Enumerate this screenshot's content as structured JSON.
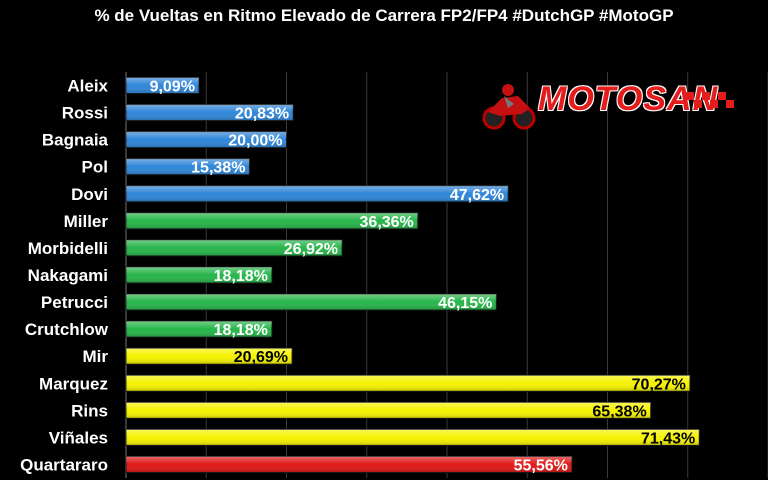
{
  "chart_data": {
    "type": "bar",
    "orientation": "horizontal",
    "title": "% de Vueltas en Ritmo Elevado de Carrera FP2/FP4 #DutchGP #MotoGP",
    "categories": [
      "Aleix",
      "Rossi",
      "Bagnaia",
      "Pol",
      "Dovi",
      "Miller",
      "Morbidelli",
      "Nakagami",
      "Petrucci",
      "Crutchlow",
      "Mir",
      "Marquez",
      "Rins",
      "Viñales",
      "Quartararo"
    ],
    "values": [
      9.09,
      20.83,
      20.0,
      15.38,
      47.62,
      36.36,
      26.92,
      18.18,
      46.15,
      18.18,
      20.69,
      70.27,
      65.38,
      71.43,
      55.56
    ],
    "data_labels": [
      "9,09%",
      "20,83%",
      "20,00%",
      "15,38%",
      "47,62%",
      "36,36%",
      "26,92%",
      "18,18%",
      "46,15%",
      "18,18%",
      "20,69%",
      "70,27%",
      "65,38%",
      "71,43%",
      "55,56%"
    ],
    "bar_colors": [
      "#2f86d8",
      "#2f86d8",
      "#2f86d8",
      "#2f86d8",
      "#2f86d8",
      "#27b54a",
      "#27b54a",
      "#27b54a",
      "#27b54a",
      "#27b54a",
      "#f5f200",
      "#f5f200",
      "#f5f200",
      "#f5f200",
      "#e01818"
    ],
    "label_colors": [
      "#ffffff",
      "#ffffff",
      "#ffffff",
      "#ffffff",
      "#ffffff",
      "#ffffff",
      "#ffffff",
      "#ffffff",
      "#ffffff",
      "#ffffff",
      "#000000",
      "#000000",
      "#000000",
      "#000000",
      "#ffffff"
    ],
    "xlim": [
      0,
      80
    ],
    "grid": true,
    "grid_color": "#3a3a3a"
  },
  "logo": {
    "text": "MOTOSAN"
  }
}
